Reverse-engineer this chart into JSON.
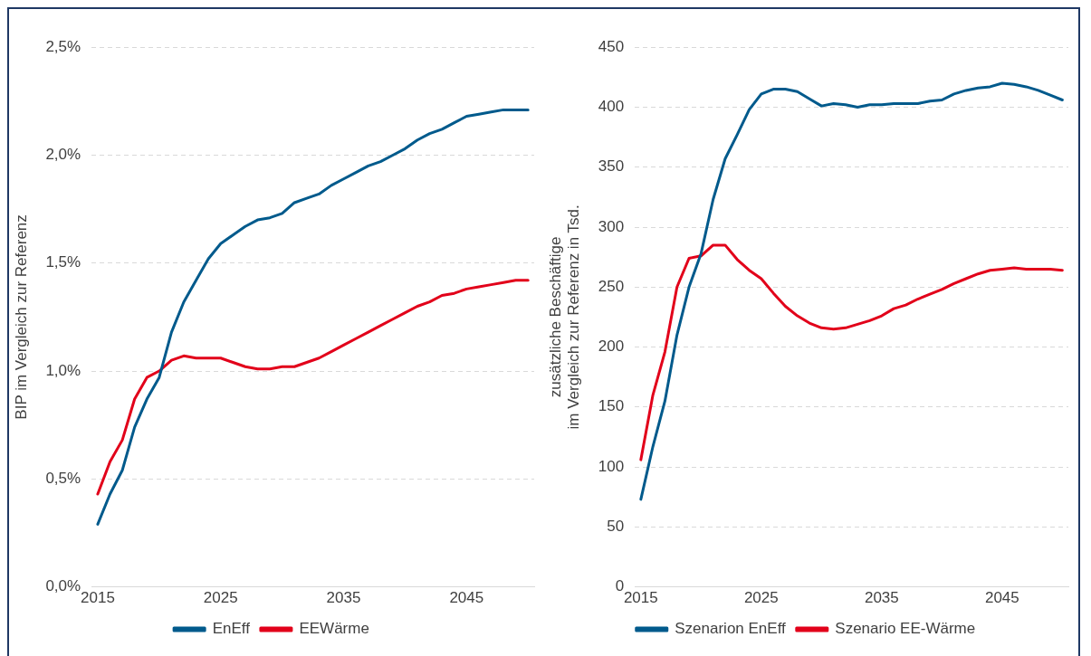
{
  "chart_data": [
    {
      "type": "line",
      "ylabel": "BIP im Vergleich zur Referenz",
      "x": [
        2015,
        2016,
        2017,
        2018,
        2019,
        2020,
        2021,
        2022,
        2023,
        2024,
        2025,
        2026,
        2027,
        2028,
        2029,
        2030,
        2031,
        2032,
        2033,
        2034,
        2035,
        2036,
        2037,
        2038,
        2039,
        2040,
        2041,
        2042,
        2043,
        2044,
        2045,
        2046,
        2047,
        2048,
        2049,
        2050
      ],
      "series": [
        {
          "name": "EnEff",
          "color": "#005a8c",
          "values": [
            0.29,
            0.43,
            0.54,
            0.74,
            0.87,
            0.97,
            1.18,
            1.32,
            1.42,
            1.52,
            1.59,
            1.63,
            1.67,
            1.7,
            1.71,
            1.73,
            1.78,
            1.8,
            1.82,
            1.86,
            1.89,
            1.92,
            1.95,
            1.97,
            2.0,
            2.03,
            2.07,
            2.1,
            2.12,
            2.15,
            2.18,
            2.19,
            2.2,
            2.21,
            2.21,
            2.21
          ]
        },
        {
          "name": "EEWärme",
          "color": "#e2001a",
          "values": [
            0.43,
            0.58,
            0.68,
            0.87,
            0.97,
            1.0,
            1.05,
            1.07,
            1.06,
            1.06,
            1.06,
            1.04,
            1.02,
            1.01,
            1.01,
            1.02,
            1.02,
            1.04,
            1.06,
            1.09,
            1.12,
            1.15,
            1.18,
            1.21,
            1.24,
            1.27,
            1.3,
            1.32,
            1.35,
            1.36,
            1.38,
            1.39,
            1.4,
            1.41,
            1.42,
            1.42
          ]
        }
      ],
      "xlim": [
        2014.5,
        2050.5
      ],
      "xticks": [
        2015,
        2025,
        2035,
        2045
      ],
      "ylim": [
        0,
        2.5
      ],
      "yticks": [
        {
          "value": 0,
          "label": "0,0%"
        },
        {
          "value": 0.5,
          "label": "0,5%"
        },
        {
          "value": 1,
          "label": "1,0%"
        },
        {
          "value": 1.5,
          "label": "1,5%"
        },
        {
          "value": 2,
          "label": "2,0%"
        },
        {
          "value": 2.5,
          "label": "2,5%"
        }
      ],
      "grid": "y",
      "legend": "bottom",
      "marker": "none",
      "line_style": "solid"
    },
    {
      "type": "line",
      "ylabel": "zusätzliche Beschäftige\nim Vergleich zur Referenz in Tsd.",
      "x": [
        2015,
        2016,
        2017,
        2018,
        2019,
        2020,
        2021,
        2022,
        2023,
        2024,
        2025,
        2026,
        2027,
        2028,
        2029,
        2030,
        2031,
        2032,
        2033,
        2034,
        2035,
        2036,
        2037,
        2038,
        2039,
        2040,
        2041,
        2042,
        2043,
        2044,
        2045,
        2046,
        2047,
        2048,
        2049,
        2050
      ],
      "series": [
        {
          "name": "Szenarion EnEff",
          "color": "#005a8c",
          "values": [
            73,
            117,
            155,
            210,
            250,
            278,
            323,
            357,
            377,
            398,
            411,
            415,
            415,
            413,
            407,
            401,
            403,
            402,
            400,
            402,
            402,
            403,
            403,
            403,
            405,
            406,
            411,
            414,
            416,
            417,
            420,
            419,
            417,
            414,
            410,
            406
          ]
        },
        {
          "name": "Szenario EE-Wärme",
          "color": "#e2001a",
          "values": [
            106,
            160,
            196,
            250,
            274,
            276,
            285,
            285,
            273,
            264,
            257,
            245,
            234,
            226,
            220,
            216,
            215,
            216,
            219,
            222,
            226,
            232,
            235,
            240,
            244,
            248,
            253,
            257,
            261,
            264,
            265,
            266,
            265,
            265,
            265,
            264
          ]
        }
      ],
      "xlim": [
        2014.5,
        2050.5
      ],
      "xticks": [
        2015,
        2025,
        2035,
        2045
      ],
      "ylim": [
        0,
        450
      ],
      "yticks": [
        0,
        50,
        100,
        150,
        200,
        250,
        300,
        350,
        400,
        450
      ],
      "grid": "y",
      "legend": "bottom",
      "marker": "none",
      "line_style": "solid"
    }
  ]
}
